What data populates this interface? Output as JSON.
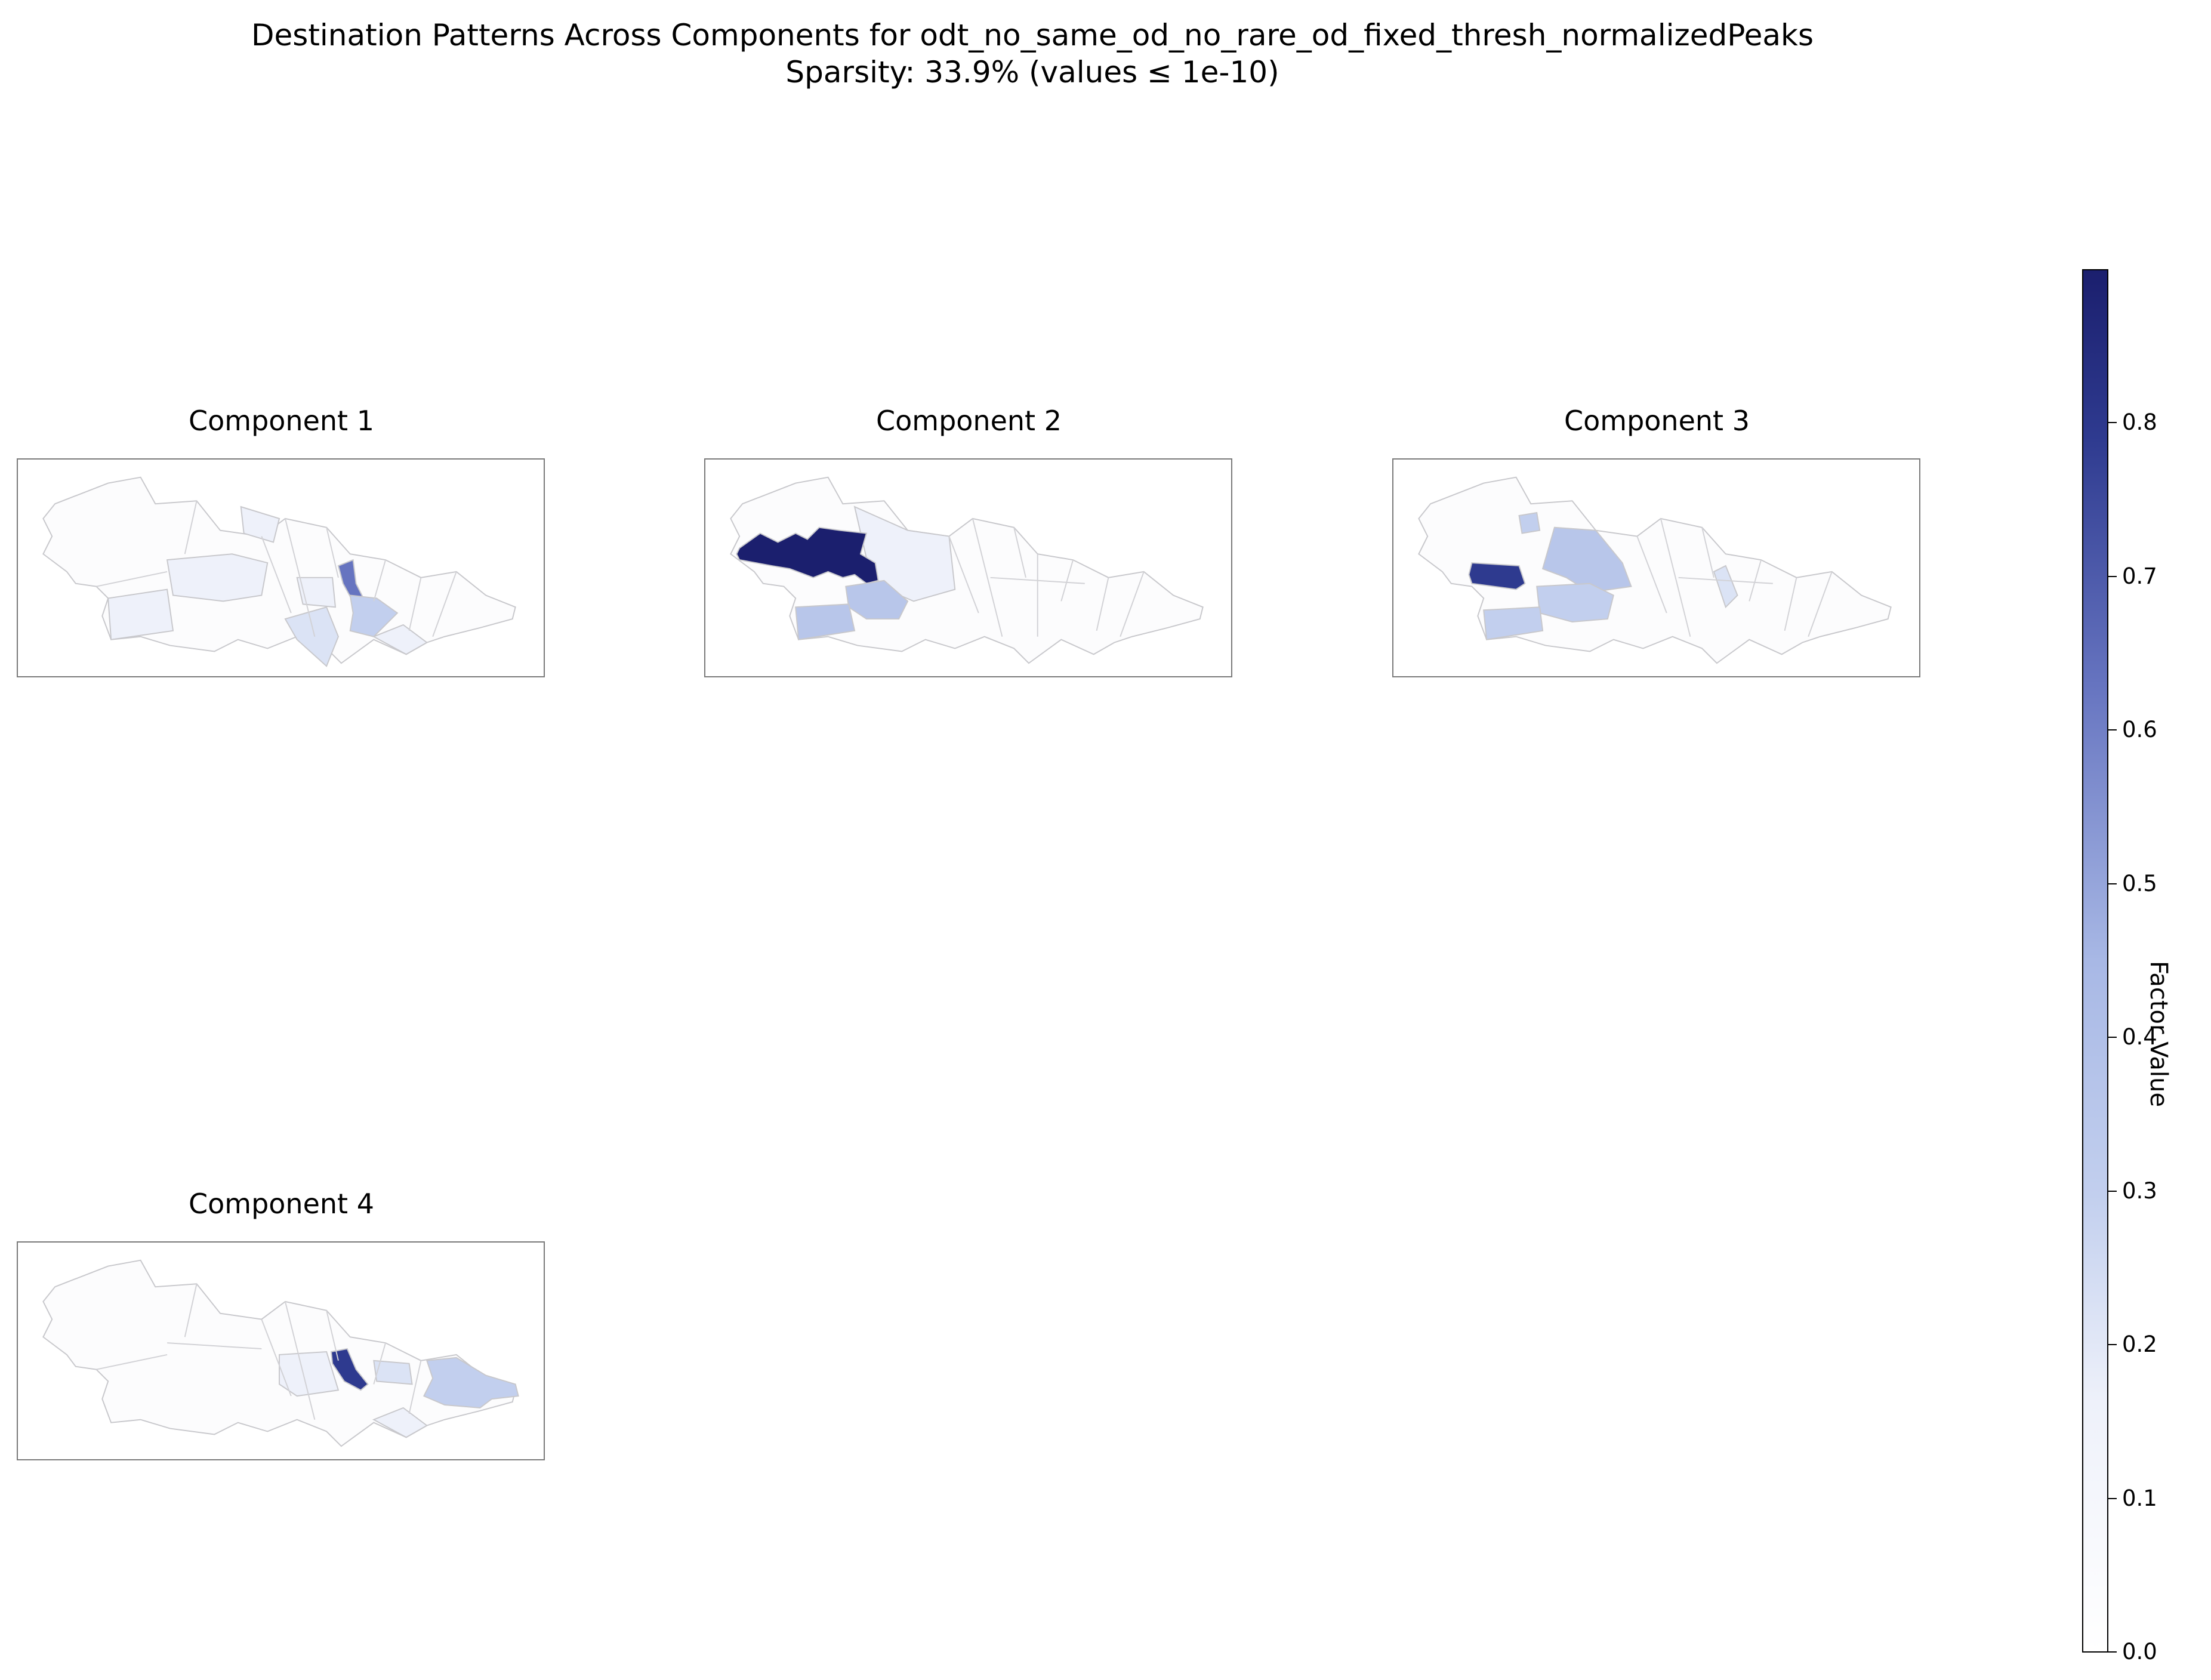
{
  "figure": {
    "title_line1": "Destination Patterns Across Components for odt_no_same_od_no_rare_od_fixed_thresh_normalizedPeaks",
    "title_line2": "Sparsity: 33.9% (values ≤ 1e-10)"
  },
  "panels": [
    {
      "title": "Component 1"
    },
    {
      "title": "Component 2"
    },
    {
      "title": "Component 3"
    },
    {
      "title": "Component 4"
    }
  ],
  "colorbar": {
    "label": "Factor Value",
    "ticks": [
      "0.0",
      "0.1",
      "0.2",
      "0.3",
      "0.4",
      "0.5",
      "0.6",
      "0.7",
      "0.8"
    ],
    "range": [
      0.0,
      0.9
    ],
    "colors": [
      "#ffffff",
      "#b8c6ea",
      "#6f7fc4",
      "#1b1f6e"
    ]
  },
  "map_colors": {
    "empty": "#fcfcfd",
    "very_light": "#eef1fa",
    "light": "#dbe3f5",
    "mid_light": "#c2cfee",
    "mid": "#a8b8e5",
    "medium_dark": "#6674c0",
    "dark": "#2e3a8f",
    "darkest": "#1b1f6e",
    "border": "#c8c8cc"
  }
}
